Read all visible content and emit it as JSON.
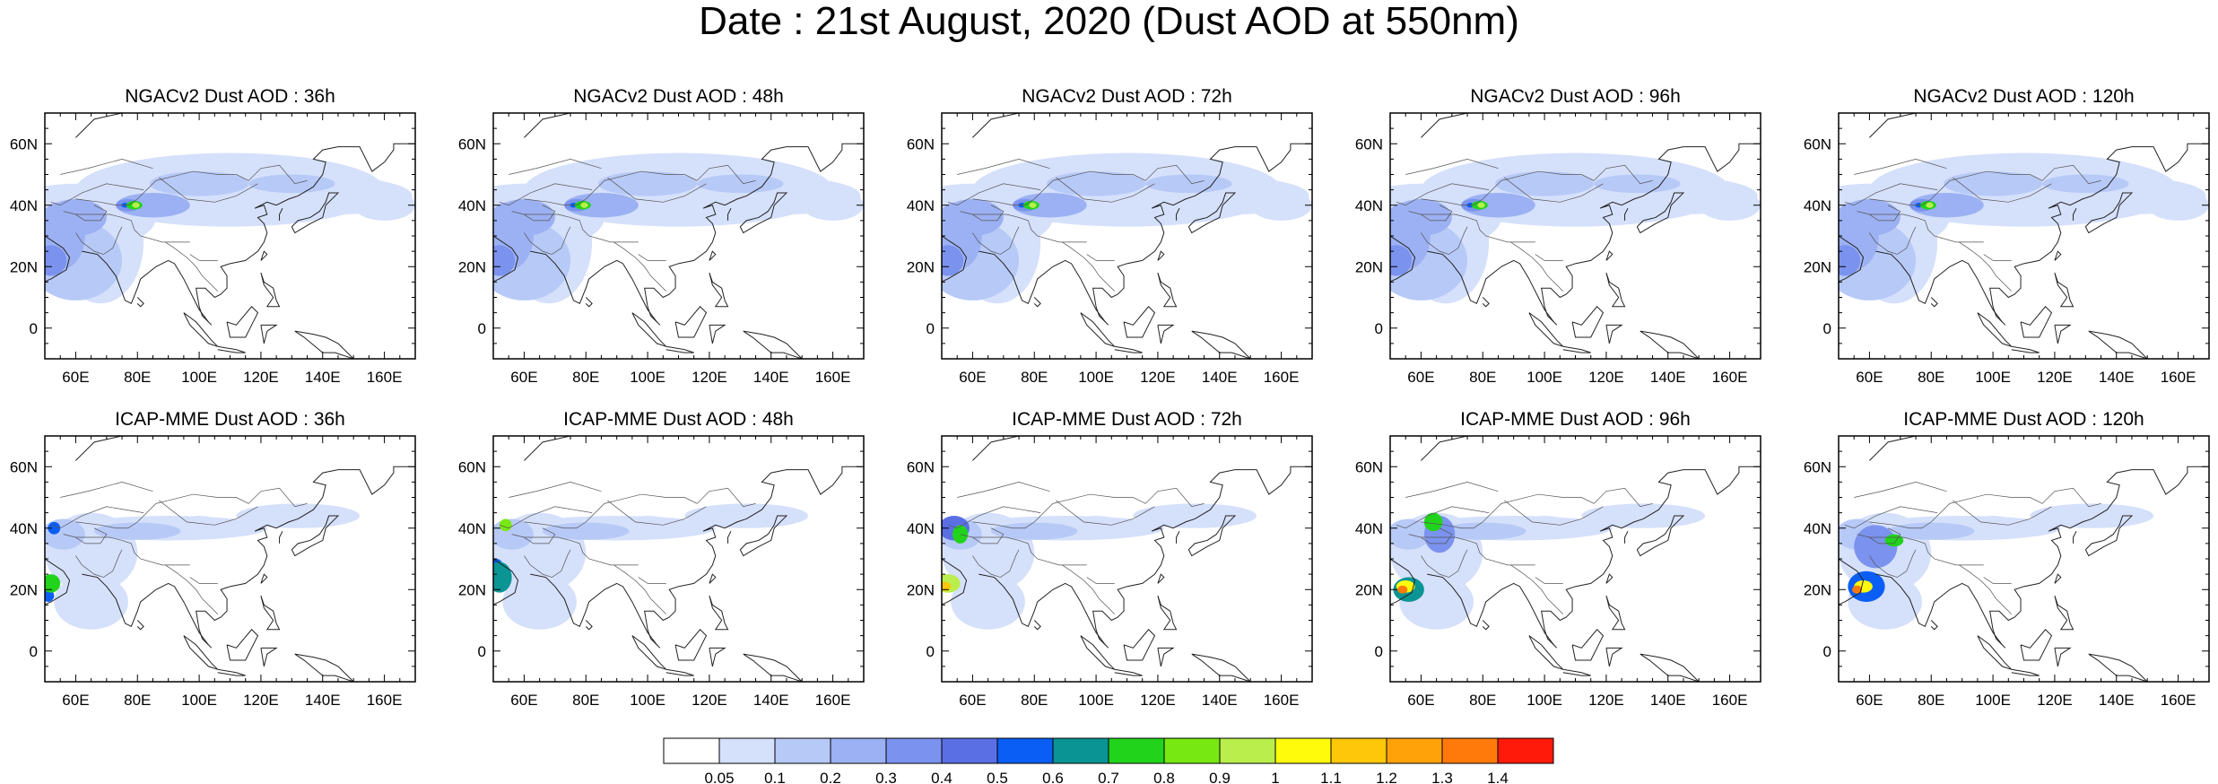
{
  "title": "Date : 21st August, 2020 (Dust AOD at 550nm)",
  "panels": [
    {
      "title": "NGACv2 Dust AOD : 36h",
      "model": "NGACv2",
      "lead": "36h"
    },
    {
      "title": "NGACv2 Dust AOD : 48h",
      "model": "NGACv2",
      "lead": "48h"
    },
    {
      "title": "NGACv2 Dust AOD : 72h",
      "model": "NGACv2",
      "lead": "72h"
    },
    {
      "title": "NGACv2 Dust AOD : 96h",
      "model": "NGACv2",
      "lead": "96h"
    },
    {
      "title": "NGACv2 Dust AOD : 120h",
      "model": "NGACv2",
      "lead": "120h"
    },
    {
      "title": "ICAP-MME Dust AOD : 36h",
      "model": "ICAP-MME",
      "lead": "36h"
    },
    {
      "title": "ICAP-MME Dust AOD : 48h",
      "model": "ICAP-MME",
      "lead": "48h"
    },
    {
      "title": "ICAP-MME Dust AOD : 72h",
      "model": "ICAP-MME",
      "lead": "72h"
    },
    {
      "title": "ICAP-MME Dust AOD : 96h",
      "model": "ICAP-MME",
      "lead": "96h"
    },
    {
      "title": "ICAP-MME Dust AOD : 120h",
      "model": "ICAP-MME",
      "lead": "120h"
    }
  ],
  "lon_ticks": [
    "60E",
    "80E",
    "100E",
    "120E",
    "140E",
    "160E"
  ],
  "lat_ticks": [
    "60N",
    "40N",
    "20N",
    "0"
  ],
  "colorbar": {
    "labels": [
      "0.05",
      "0.1",
      "0.2",
      "0.3",
      "0.4",
      "0.5",
      "0.6",
      "0.7",
      "0.8",
      "0.9",
      "1",
      "1.1",
      "1.2",
      "1.3",
      "1.4"
    ],
    "colors": [
      "#ffffff",
      "#d5e0fb",
      "#b7c9f7",
      "#9cb1f3",
      "#7b93ee",
      "#5a6fe4",
      "#0a5ef5",
      "#0b9494",
      "#22d31c",
      "#77e812",
      "#b9ee4c",
      "#fffb0a",
      "#ffc70a",
      "#ffa20a",
      "#ff7a0a",
      "#ff1a0a"
    ]
  }
}
